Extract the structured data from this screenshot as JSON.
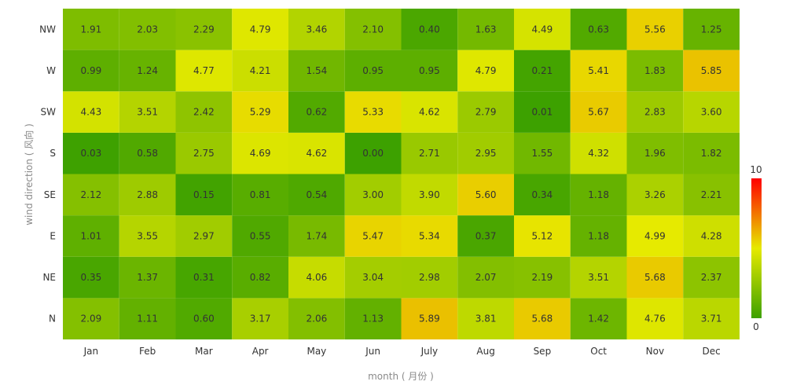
{
  "chart_data": {
    "type": "heatmap",
    "xlabel": "month ( 月份 )",
    "ylabel": "wind direction ( 风向 )",
    "x_categories": [
      "Jan",
      "Feb",
      "Mar",
      "Apr",
      "May",
      "Jun",
      "July",
      "Aug",
      "Sep",
      "Oct",
      "Nov",
      "Dec"
    ],
    "y_categories": [
      "N",
      "NE",
      "E",
      "SE",
      "S",
      "SW",
      "W",
      "NW"
    ],
    "values": [
      [
        2.09,
        1.11,
        0.6,
        3.17,
        2.06,
        1.13,
        5.89,
        3.81,
        5.68,
        1.42,
        4.76,
        3.71
      ],
      [
        0.35,
        1.37,
        0.31,
        0.82,
        4.06,
        3.04,
        2.98,
        2.07,
        2.19,
        3.51,
        5.68,
        2.37
      ],
      [
        1.01,
        3.55,
        2.97,
        0.55,
        1.74,
        5.47,
        5.34,
        0.37,
        5.12,
        1.18,
        4.99,
        4.28
      ],
      [
        2.12,
        2.88,
        0.15,
        0.81,
        0.54,
        3.0,
        3.9,
        5.6,
        0.34,
        1.18,
        3.26,
        2.21
      ],
      [
        0.03,
        0.58,
        2.75,
        4.69,
        4.62,
        0.0,
        2.71,
        2.95,
        1.55,
        4.32,
        1.96,
        1.82
      ],
      [
        4.43,
        3.51,
        2.42,
        5.29,
        0.62,
        5.33,
        4.62,
        2.79,
        0.01,
        5.67,
        2.83,
        3.6
      ],
      [
        0.99,
        1.24,
        4.77,
        4.21,
        1.54,
        0.95,
        0.95,
        4.79,
        0.21,
        5.41,
        1.83,
        5.85
      ],
      [
        1.91,
        2.03,
        2.29,
        4.79,
        3.46,
        2.1,
        0.4,
        1.63,
        4.49,
        0.63,
        5.56,
        1.25
      ]
    ],
    "value_range": [
      0,
      10
    ],
    "visual_map": {
      "min_label": "0",
      "max_label": "10",
      "colors": [
        "#3da100",
        "#e6ea00",
        "#ff0000"
      ]
    }
  }
}
